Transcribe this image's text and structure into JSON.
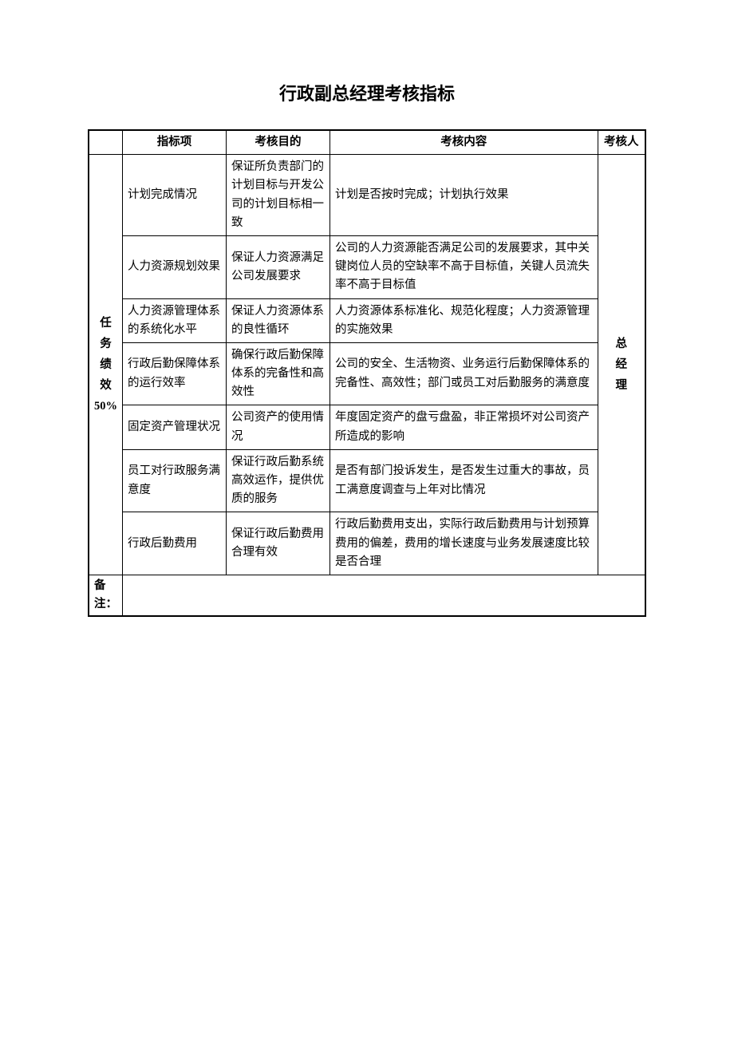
{
  "title": "行政副总经理考核指标",
  "headers": {
    "blank": "",
    "indicator": "指标项",
    "purpose": "考核目的",
    "content": "考核内容",
    "assessor": "考核人"
  },
  "category": {
    "label": "任务绩效",
    "percent": "50%"
  },
  "assessor": "总经理",
  "rows": [
    {
      "indicator": "计划完成情况",
      "purpose": "保证所负责部门的计划目标与开发公司的计划目标相一致",
      "content": "计划是否按时完成；计划执行效果"
    },
    {
      "indicator": "人力资源规划效果",
      "purpose": "保证人力资源满足公司发展要求",
      "content": "公司的人力资源能否满足公司的发展要求，其中关键岗位人员的空缺率不高于目标值，关键人员流失率不高于目标值"
    },
    {
      "indicator": "人力资源管理体系的系统化水平",
      "purpose": "保证人力资源体系的良性循环",
      "content": "人力资源体系标准化、规范化程度；人力资源管理的实施效果"
    },
    {
      "indicator": "行政后勤保障体系的运行效率",
      "purpose": "确保行政后勤保障体系的完备性和高效性",
      "content": "公司的安全、生活物资、业务运行后勤保障体系的完备性、高效性；部门或员工对后勤服务的满意度"
    },
    {
      "indicator": "固定资产管理状况",
      "purpose": "公司资产的使用情况",
      "content": "年度固定资产的盘亏盘盈，非正常损坏对公司资产所造成的影响"
    },
    {
      "indicator": "员工对行政服务满意度",
      "purpose": "保证行政后勤系统高效运作，提供优质的服务",
      "content": "是否有部门投诉发生，是否发生过重大的事故，员工满意度调查与上年对比情况"
    },
    {
      "indicator": "行政后勤费用",
      "purpose": "保证行政后勤费用合理有效",
      "content": "行政后勤费用支出，实际行政后勤费用与计划预算费用的偏差，费用的增长速度与业务发展速度比较是否合理"
    }
  ],
  "remark_label": "备注："
}
